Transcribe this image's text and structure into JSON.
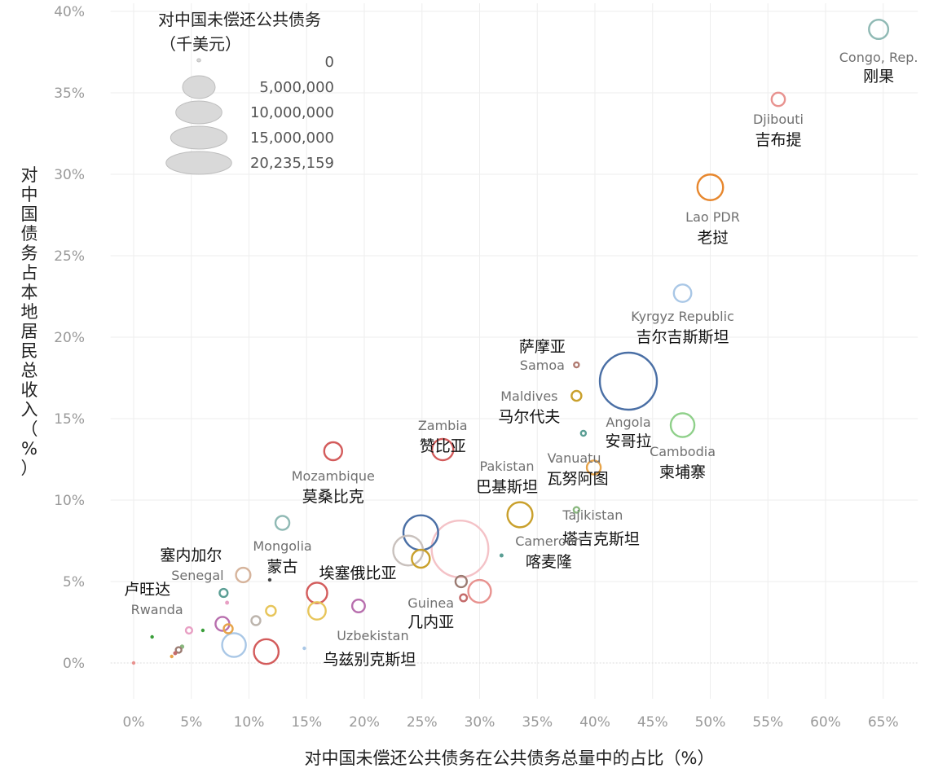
{
  "chart_data": {
    "type": "scatter",
    "xlabel": "对中国未偿还公共债务在公共债务总量中的占比（%）",
    "ylabel": "对中国债务占本地居民总收入（%）",
    "xlim": [
      -2,
      68
    ],
    "ylim": [
      -2.2,
      40.5
    ],
    "x_ticks": [
      "0%",
      "5%",
      "10%",
      "15%",
      "20%",
      "25%",
      "30%",
      "35%",
      "40%",
      "45%",
      "50%",
      "55%",
      "60%",
      "65%"
    ],
    "x_tick_values": [
      0,
      5,
      10,
      15,
      20,
      25,
      30,
      35,
      40,
      45,
      50,
      55,
      60,
      65
    ],
    "y_ticks": [
      "0%",
      "5%",
      "10%",
      "15%",
      "20%",
      "25%",
      "30%",
      "35%",
      "40%"
    ],
    "y_tick_values": [
      0,
      5,
      10,
      15,
      20,
      25,
      30,
      35,
      40
    ],
    "grid": true,
    "legend": {
      "title_line1": "对中国未偿还公共债务",
      "title_line2": "（千美元）",
      "placement": "top-left",
      "entries": [
        {
          "label": "0",
          "value": 0
        },
        {
          "label": "5,000,000",
          "value": 5000000
        },
        {
          "label": "10,000,000",
          "value": 10000000
        },
        {
          "label": "15,000,000",
          "value": 15000000
        },
        {
          "label": "20,235,159",
          "value": 20235159
        }
      ]
    },
    "points": [
      {
        "x": 64.6,
        "y": 38.9,
        "size": 2300000,
        "color": "#8fb9b4",
        "en": "Congo, Rep.",
        "cn": "刚果"
      },
      {
        "x": 55.9,
        "y": 34.6,
        "size": 1100000,
        "color": "#e8928f",
        "en": "Djibouti",
        "cn": "吉布提"
      },
      {
        "x": 50.0,
        "y": 29.2,
        "size": 4100000,
        "color": "#e7872e",
        "en": "Lao PDR",
        "cn": "老挝"
      },
      {
        "x": 47.6,
        "y": 22.7,
        "size": 1900000,
        "color": "#a9c7e6",
        "en": "Kyrgyz Republic",
        "cn": "吉尔吉斯斯坦"
      },
      {
        "x": 38.4,
        "y": 18.3,
        "size": 150000,
        "color": "#b07a70",
        "en": "Samoa",
        "cn": "萨摩亚"
      },
      {
        "x": 38.4,
        "y": 16.4,
        "size": 600000,
        "color": "#c9a02c",
        "en": "Maldives",
        "cn": "马尔代夫"
      },
      {
        "x": 42.9,
        "y": 17.3,
        "size": 20235159,
        "color": "#4a6fa5",
        "en": "Angola",
        "cn": "安哥拉"
      },
      {
        "x": 39.0,
        "y": 14.1,
        "size": 150000,
        "color": "#5a9e94",
        "en": "",
        "cn": ""
      },
      {
        "x": 47.6,
        "y": 14.6,
        "size": 3500000,
        "color": "#8fd08a",
        "en": "Cambodia",
        "cn": "柬埔寨"
      },
      {
        "x": 39.9,
        "y": 12.0,
        "size": 1200000,
        "color": "#e7a44a",
        "en": "Vanuatu",
        "cn": "瓦努阿图"
      },
      {
        "x": 38.4,
        "y": 9.4,
        "size": 200000,
        "color": "#8ab87f",
        "en": "Tajikistan",
        "cn": "塔吉克斯坦"
      },
      {
        "x": 33.5,
        "y": 9.1,
        "size": 3900000,
        "color": "#c9a02c",
        "en": "Pakistan",
        "cn": "巴基斯坦"
      },
      {
        "x": 31.9,
        "y": 6.6,
        "size": 100000,
        "color": "#5a9e94",
        "en": "Cameroon",
        "cn": "喀麦隆"
      },
      {
        "x": 28.3,
        "y": 7.0,
        "size": 20000000,
        "color": "#f4c2c7",
        "en": "",
        "cn": ""
      },
      {
        "x": 26.8,
        "y": 13.1,
        "size": 2800000,
        "color": "#d35b5b",
        "en": "Zambia",
        "cn": "赞比亚"
      },
      {
        "x": 24.9,
        "y": 8.0,
        "size": 7500000,
        "color": "#4a6fa5",
        "en": "",
        "cn": ""
      },
      {
        "x": 23.8,
        "y": 6.9,
        "size": 5500000,
        "color": "#c9c1bd",
        "en": "",
        "cn": ""
      },
      {
        "x": 24.9,
        "y": 6.4,
        "size": 2000000,
        "color": "#c9a02c",
        "en": "",
        "cn": ""
      },
      {
        "x": 28.4,
        "y": 5.0,
        "size": 800000,
        "color": "#9b7b72",
        "en": "",
        "cn": ""
      },
      {
        "x": 30.0,
        "y": 4.4,
        "size": 3200000,
        "color": "#e8928f",
        "en": "",
        "cn": ""
      },
      {
        "x": 28.6,
        "y": 4.0,
        "size": 300000,
        "color": "#c46b6b",
        "en": "Guinea",
        "cn": "几内亚"
      },
      {
        "x": 17.3,
        "y": 13.0,
        "size": 2000000,
        "color": "#d35b5b",
        "en": "Mozambique",
        "cn": "莫桑比克"
      },
      {
        "x": 12.9,
        "y": 8.6,
        "size": 1200000,
        "color": "#8fb9b4",
        "en": "Mongolia",
        "cn": "蒙古"
      },
      {
        "x": 11.8,
        "y": 5.1,
        "size": 80000,
        "color": "#444444",
        "en": "",
        "cn": ""
      },
      {
        "x": 9.5,
        "y": 5.4,
        "size": 1300000,
        "color": "#d6b49c",
        "en": "Senegal",
        "cn": "塞内加尔"
      },
      {
        "x": 15.9,
        "y": 4.3,
        "size": 2600000,
        "color": "#d35b5b",
        "en": "",
        "cn": "埃塞俄比亚"
      },
      {
        "x": 15.9,
        "y": 3.2,
        "size": 1900000,
        "color": "#e7c55a",
        "en": "",
        "cn": ""
      },
      {
        "x": 19.5,
        "y": 3.5,
        "size": 1000000,
        "color": "#b86fae",
        "en": "",
        "cn": ""
      },
      {
        "x": 11.9,
        "y": 3.2,
        "size": 600000,
        "color": "#e7c55a",
        "en": "",
        "cn": ""
      },
      {
        "x": 10.6,
        "y": 2.6,
        "size": 500000,
        "color": "#bdb5ad",
        "en": "",
        "cn": ""
      },
      {
        "x": 11.5,
        "y": 0.7,
        "size": 3800000,
        "color": "#d35b5b",
        "en": "",
        "cn": ""
      },
      {
        "x": 8.7,
        "y": 1.1,
        "size": 3500000,
        "color": "#a9c7e6",
        "en": "",
        "cn": ""
      },
      {
        "x": 14.8,
        "y": 0.9,
        "size": 40000,
        "color": "#a9c7e6",
        "en": "Uzbekistan",
        "cn": "乌兹别克斯坦"
      },
      {
        "x": 7.8,
        "y": 4.3,
        "size": 400000,
        "color": "#5a9e94",
        "en": "",
        "cn": ""
      },
      {
        "x": 8.1,
        "y": 3.7,
        "size": 100000,
        "color": "#e8a0c4",
        "en": "",
        "cn": ""
      },
      {
        "x": 7.7,
        "y": 2.4,
        "size": 1200000,
        "color": "#b86fae",
        "en": "",
        "cn": ""
      },
      {
        "x": 8.2,
        "y": 2.1,
        "size": 500000,
        "color": "#e7a44a",
        "en": "",
        "cn": ""
      },
      {
        "x": 4.8,
        "y": 2.0,
        "size": 250000,
        "color": "#e8a0c4",
        "en": "",
        "cn": ""
      },
      {
        "x": 6.0,
        "y": 2.0,
        "size": 50000,
        "color": "#3a9e3a",
        "en": "",
        "cn": ""
      },
      {
        "x": 1.6,
        "y": 1.6,
        "size": 40000,
        "color": "#3a9e3a",
        "en": "Rwanda",
        "cn": "卢旺达"
      },
      {
        "x": 4.2,
        "y": 1.0,
        "size": 120000,
        "color": "#8ab87f",
        "en": "",
        "cn": ""
      },
      {
        "x": 3.9,
        "y": 0.8,
        "size": 200000,
        "color": "#9b7b72",
        "en": "",
        "cn": ""
      },
      {
        "x": 3.6,
        "y": 0.6,
        "size": 100000,
        "color": "#c46b6b",
        "en": "",
        "cn": ""
      },
      {
        "x": 3.3,
        "y": 0.4,
        "size": 60000,
        "color": "#e7a44a",
        "en": "",
        "cn": ""
      },
      {
        "x": 0.0,
        "y": 0.0,
        "size": 20000,
        "color": "#e8928f",
        "en": "",
        "cn": ""
      }
    ]
  }
}
